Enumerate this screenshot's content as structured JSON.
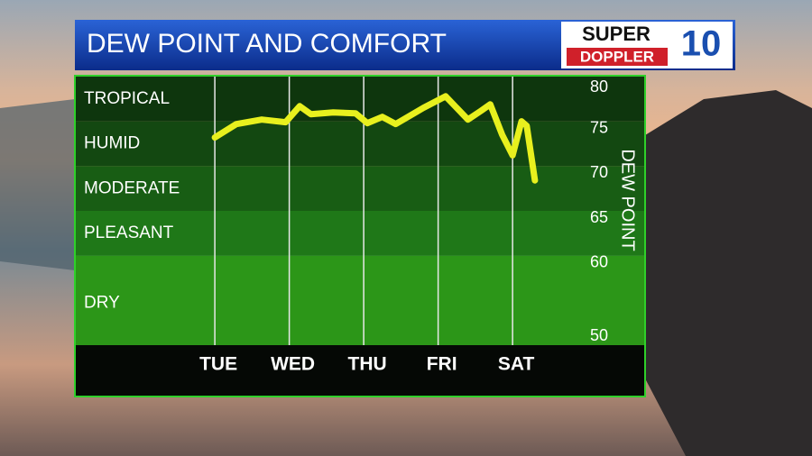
{
  "chart_data": {
    "type": "line",
    "title": "DEW POINT AND COMFORT",
    "logo": {
      "line1": "SUPER",
      "line2": "DOPPLER",
      "number": "10"
    },
    "y_label": "DEW POINT",
    "categories": [
      "TUE",
      "WED",
      "THU",
      "FRI",
      "SAT"
    ],
    "category_x": [
      0,
      1,
      2,
      3,
      4
    ],
    "xlim": [
      -1.88,
      5.78
    ],
    "ylim": [
      50,
      80
    ],
    "yticks": [
      80,
      75,
      70,
      65,
      60,
      50
    ],
    "bands": [
      {
        "label": "TROPICAL",
        "from": 75,
        "to": 80,
        "color": "#0e360d"
      },
      {
        "label": "HUMID",
        "from": 70,
        "to": 75,
        "color": "#134811"
      },
      {
        "label": "MODERATE",
        "from": 65,
        "to": 70,
        "color": "#185d14"
      },
      {
        "label": "PLEASANT",
        "from": 60,
        "to": 65,
        "color": "#1f7818"
      },
      {
        "label": "DRY",
        "from": 50,
        "to": 60,
        "color": "#2c9618"
      }
    ],
    "series": [
      {
        "color": "#e8f01e",
        "x": [
          0,
          0.29,
          0.63,
          0.95,
          1.14,
          1.29,
          1.59,
          1.89,
          2.05,
          2.25,
          2.43,
          2.8,
          3.1,
          3.4,
          3.58,
          3.7,
          3.86,
          4.0,
          4.12,
          4.19,
          4.3
        ],
        "values": [
          73.2,
          74.7,
          75.2,
          74.9,
          76.7,
          75.8,
          76.0,
          75.9,
          74.8,
          75.5,
          74.7,
          76.5,
          77.8,
          75.2,
          76.2,
          76.9,
          73.5,
          71.2,
          75.0,
          74.5,
          68.4
        ]
      }
    ]
  }
}
